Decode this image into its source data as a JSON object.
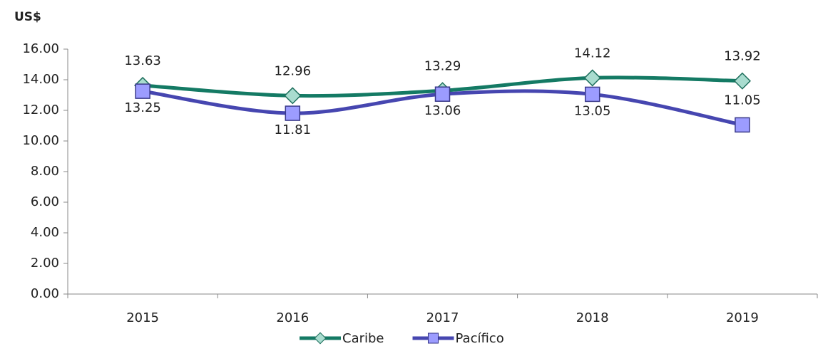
{
  "chart_data": {
    "type": "line",
    "title": "US$",
    "categories": [
      "2015",
      "2016",
      "2017",
      "2018",
      "2019"
    ],
    "series": [
      {
        "name": "Caribe",
        "color": "#147a64",
        "marker": "diamond",
        "values": [
          13.63,
          12.96,
          13.29,
          14.12,
          13.92
        ]
      },
      {
        "name": "Pacífico",
        "color": "#4646b0",
        "marker": "square",
        "values": [
          13.25,
          11.81,
          13.06,
          13.05,
          11.05
        ]
      }
    ],
    "ylim": [
      0,
      16
    ],
    "yticks": [
      {
        "value": 0,
        "label": "0.00"
      },
      {
        "value": 2,
        "label": "2.00"
      },
      {
        "value": 4,
        "label": "4.00"
      },
      {
        "value": 6,
        "label": "6.00"
      },
      {
        "value": 8,
        "label": "8.00"
      },
      {
        "value": 10,
        "label": "10.00"
      },
      {
        "value": 12,
        "label": "12.00"
      },
      {
        "value": 14,
        "label": "14.00"
      },
      {
        "value": 16,
        "label": "16.00"
      }
    ],
    "smooth": true,
    "grid": false,
    "legend": "bottom"
  }
}
